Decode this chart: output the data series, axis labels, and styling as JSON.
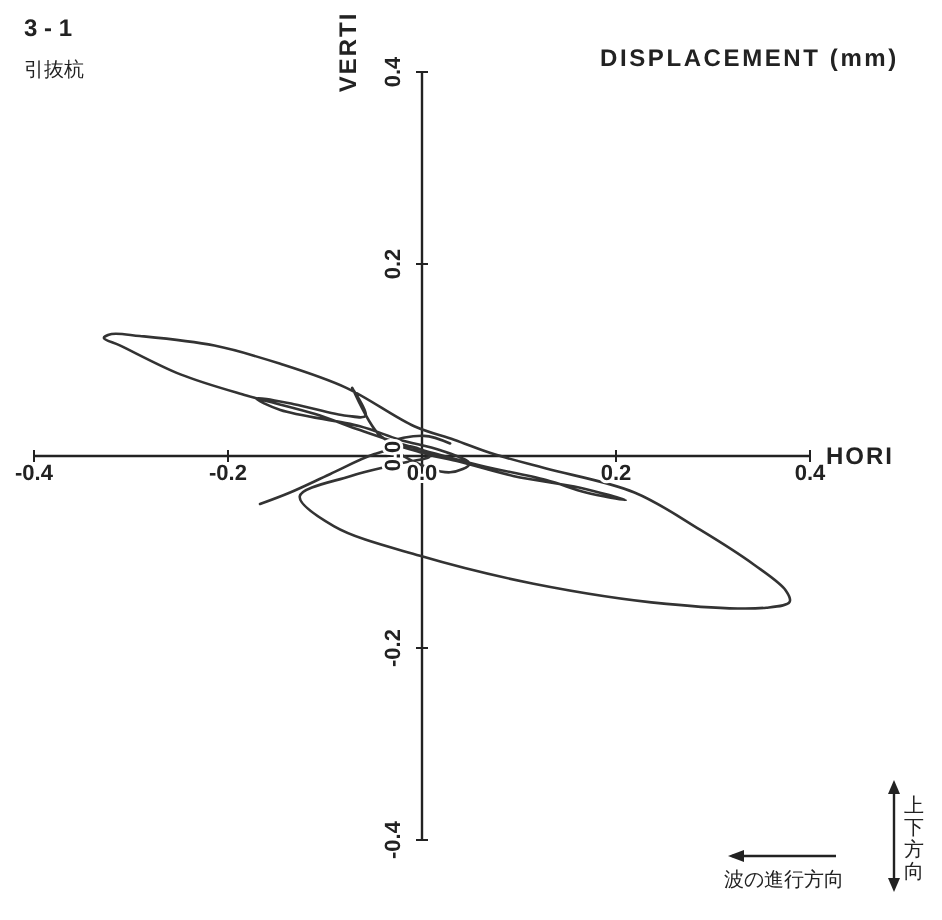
{
  "chart_data": {
    "type": "line",
    "title": "DISPLACEMENT (mm)",
    "xlabel": "HORI",
    "ylabel": "VERTI",
    "annotations": [
      "3 - 1",
      "引抜杭",
      "波の進行方向",
      "上下方向"
    ],
    "x": [
      -0.167,
      -0.136,
      -0.095,
      -0.049,
      -0.012,
      0.008,
      -0.023,
      -0.074,
      -0.126,
      -0.091,
      -0.002,
      0.115,
      0.252,
      0.355,
      0.379,
      0.375,
      0.342,
      0.287,
      0.219,
      0.128,
      0.074,
      0.033,
      -0.008,
      -0.078,
      -0.146,
      -0.214,
      -0.291,
      -0.32,
      -0.328,
      -0.311,
      -0.249,
      -0.181,
      -0.111,
      -0.064,
      -0.023,
      0.008,
      0.06,
      0.128,
      0.169,
      0.21,
      0.163,
      0.095,
      0.039,
      -0.002,
      -0.043,
      -0.072,
      -0.058,
      -0.078,
      -0.132,
      -0.171,
      -0.146,
      -0.064,
      -0.023,
      0.019,
      0.049,
      0.029,
      -0.012,
      -0.033,
      0.002,
      0.029
    ],
    "values": [
      -0.05,
      -0.038,
      -0.019,
      0.002,
      0.01,
      0.0,
      -0.008,
      -0.021,
      -0.042,
      -0.073,
      -0.104,
      -0.133,
      -0.154,
      -0.158,
      -0.152,
      -0.14,
      -0.113,
      -0.077,
      -0.038,
      -0.013,
      0.002,
      0.017,
      0.031,
      0.071,
      0.096,
      0.115,
      0.125,
      0.127,
      0.123,
      0.115,
      0.085,
      0.063,
      0.044,
      0.027,
      0.013,
      0.004,
      -0.01,
      -0.025,
      -0.038,
      -0.046,
      -0.033,
      -0.021,
      -0.006,
      0.004,
      0.021,
      0.071,
      0.042,
      0.042,
      0.054,
      0.06,
      0.048,
      0.031,
      0.017,
      0.006,
      -0.008,
      -0.017,
      -0.004,
      0.013,
      0.021,
      0.013
    ],
    "color": "#333333",
    "line_style": "solid",
    "xlim": [
      -0.4,
      0.4
    ],
    "ylim": [
      -0.4,
      0.4
    ],
    "xticks": [
      -0.4,
      -0.2,
      {
        "value": 0,
        "label": "0.0"
      },
      0.2,
      0.4
    ],
    "yticks": [
      -0.4,
      -0.2,
      {
        "value": 0,
        "label": "0.0"
      },
      0.2,
      0.4
    ]
  }
}
